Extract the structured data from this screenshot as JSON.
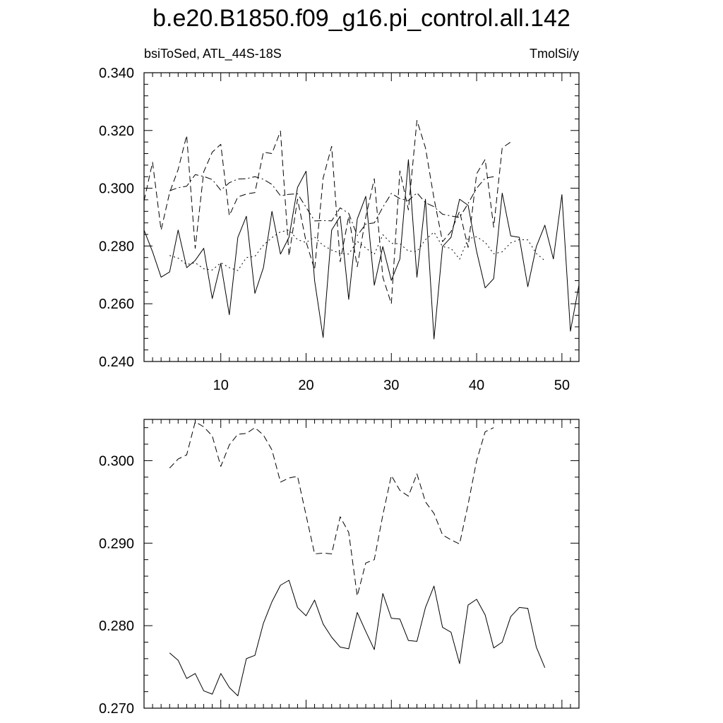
{
  "title": "b.e20.B1850.f09_g16.pi_control.all.142",
  "chart_data": [
    {
      "type": "line",
      "left_label": "bsiToSed, ATL_44S-18S",
      "right_label": "TmolSi/y",
      "xlim": [
        1,
        52
      ],
      "ylim": [
        0.24,
        0.34
      ],
      "xticks": [
        10,
        20,
        30,
        40,
        50
      ],
      "yticks": [
        0.24,
        0.26,
        0.28,
        0.3,
        0.32,
        0.34
      ],
      "ytick_labels": [
        "0.240",
        "0.260",
        "0.280",
        "0.300",
        "0.320",
        "0.340"
      ],
      "grid": false,
      "series": [
        {
          "style": "solid",
          "x": [
            1,
            2,
            3,
            4,
            5,
            6,
            7,
            8,
            9,
            10,
            11,
            12,
            13,
            14,
            15,
            16,
            17,
            18,
            19,
            20,
            21,
            22,
            23,
            24,
            25,
            26,
            27,
            28,
            29,
            30,
            31,
            32,
            33,
            34,
            35,
            36,
            37,
            38,
            39,
            40,
            41,
            42,
            43,
            44,
            45,
            46,
            47,
            48,
            49,
            50,
            51,
            52
          ],
          "values": [
            0.2855,
            0.278,
            0.2692,
            0.271,
            0.2855,
            0.2725,
            0.275,
            0.2792,
            0.2618,
            0.274,
            0.2562,
            0.283,
            0.2903,
            0.2636,
            0.2725,
            0.292,
            0.2772,
            0.283,
            0.3003,
            0.3059,
            0.268,
            0.2483,
            0.2855,
            0.2903,
            0.2615,
            0.2893,
            0.2972,
            0.2664,
            0.2798,
            0.2681,
            0.2755,
            0.3099,
            0.2692,
            0.2962,
            0.2478,
            0.2798,
            0.283,
            0.2962,
            0.2941,
            0.2781,
            0.2655,
            0.2687,
            0.2983,
            0.2835,
            0.283,
            0.2659,
            0.2798,
            0.2872,
            0.2755,
            0.2978,
            0.2505,
            0.2665
          ]
        },
        {
          "style": "dashed",
          "x": [
            1,
            2,
            3,
            4,
            5,
            6,
            7,
            8,
            9,
            10,
            11,
            12,
            13,
            14,
            15,
            16,
            17,
            18,
            19,
            20,
            21,
            22,
            23,
            24,
            25,
            26,
            27,
            28,
            29,
            30,
            31,
            32,
            33,
            34,
            35,
            36,
            37,
            38,
            39,
            40,
            41,
            42,
            43,
            44
          ],
          "values": [
            0.2956,
            0.309,
            0.2855,
            0.2985,
            0.3065,
            0.3183,
            0.2792,
            0.3057,
            0.3125,
            0.3152,
            0.2905,
            0.297,
            0.298,
            0.2985,
            0.3125,
            0.312,
            0.3198,
            0.2766,
            0.2962,
            0.2815,
            0.2718,
            0.3035,
            0.3145,
            0.2745,
            0.2903,
            0.2728,
            0.29,
            0.3033,
            0.2692,
            0.26,
            0.306,
            0.2925,
            0.3235,
            0.314,
            0.2965,
            0.2815,
            0.285,
            0.292,
            0.2795,
            0.305,
            0.31,
            0.2865,
            0.314,
            0.316
          ]
        },
        {
          "style": "dashdot",
          "x": [
            4,
            5,
            6,
            7,
            8,
            9,
            10,
            11,
            12,
            13,
            14,
            15,
            16,
            17,
            18,
            19,
            20,
            21,
            22,
            23,
            24,
            25,
            26,
            27,
            28,
            29,
            30,
            31,
            32,
            33,
            34,
            35,
            36,
            37,
            38,
            39,
            40,
            41,
            42
          ],
          "values": [
            0.2991,
            0.3002,
            0.3007,
            0.3047,
            0.3041,
            0.303,
            0.2993,
            0.3019,
            0.3032,
            0.3033,
            0.304,
            0.3031,
            0.3013,
            0.2974,
            0.2979,
            0.2981,
            0.2934,
            0.2887,
            0.2888,
            0.2887,
            0.2932,
            0.2913,
            0.2836,
            0.2876,
            0.288,
            0.2934,
            0.2982,
            0.2964,
            0.2957,
            0.2984,
            0.295,
            0.2936,
            0.291,
            0.2904,
            0.2899,
            0.2947,
            0.3,
            0.3035,
            0.304
          ]
        },
        {
          "style": "dotted",
          "x": [
            4,
            5,
            6,
            7,
            8,
            9,
            10,
            11,
            12,
            13,
            14,
            15,
            16,
            17,
            18,
            19,
            20,
            21,
            22,
            23,
            24,
            25,
            26,
            27,
            28,
            29,
            30,
            31,
            32,
            33,
            34,
            35,
            36,
            37,
            38,
            39,
            40,
            41,
            42,
            43,
            44,
            45,
            46,
            47,
            48
          ],
          "values": [
            0.2767,
            0.2758,
            0.2736,
            0.2742,
            0.2721,
            0.2717,
            0.2742,
            0.2725,
            0.2715,
            0.276,
            0.2764,
            0.2803,
            0.2829,
            0.2849,
            0.2855,
            0.2822,
            0.2812,
            0.2831,
            0.2802,
            0.2786,
            0.2774,
            0.2772,
            0.2816,
            0.2793,
            0.2771,
            0.2839,
            0.2809,
            0.2808,
            0.2782,
            0.2781,
            0.2822,
            0.2848,
            0.2798,
            0.2792,
            0.2754,
            0.2825,
            0.2832,
            0.2813,
            0.2773,
            0.278,
            0.2811,
            0.2822,
            0.2821,
            0.2774,
            0.2749
          ]
        }
      ]
    },
    {
      "type": "line",
      "xlim": [
        1,
        52
      ],
      "ylim": [
        0.27,
        0.305
      ],
      "xticks": [
        10,
        20,
        30,
        40,
        50
      ],
      "yticks": [
        0.27,
        0.28,
        0.29,
        0.3
      ],
      "ytick_labels": [
        "0.270",
        "0.280",
        "0.290",
        "0.300"
      ],
      "grid": false,
      "series": [
        {
          "style": "dashed",
          "x": [
            4,
            5,
            6,
            7,
            8,
            9,
            10,
            11,
            12,
            13,
            14,
            15,
            16,
            17,
            18,
            19,
            20,
            21,
            22,
            23,
            24,
            25,
            26,
            27,
            28,
            29,
            30,
            31,
            32,
            33,
            34,
            35,
            36,
            37,
            38,
            39,
            40,
            41,
            42
          ],
          "values": [
            0.2991,
            0.3002,
            0.3007,
            0.3047,
            0.3041,
            0.303,
            0.2993,
            0.3019,
            0.3032,
            0.3033,
            0.304,
            0.3031,
            0.3013,
            0.2974,
            0.2979,
            0.2981,
            0.2934,
            0.2887,
            0.2888,
            0.2887,
            0.2932,
            0.2913,
            0.2836,
            0.2876,
            0.288,
            0.2934,
            0.2982,
            0.2964,
            0.2957,
            0.2984,
            0.295,
            0.2936,
            0.291,
            0.2904,
            0.2899,
            0.2947,
            0.3,
            0.3035,
            0.304
          ]
        },
        {
          "style": "solid",
          "x": [
            4,
            5,
            6,
            7,
            8,
            9,
            10,
            11,
            12,
            13,
            14,
            15,
            16,
            17,
            18,
            19,
            20,
            21,
            22,
            23,
            24,
            25,
            26,
            27,
            28,
            29,
            30,
            31,
            32,
            33,
            34,
            35,
            36,
            37,
            38,
            39,
            40,
            41,
            42,
            43,
            44,
            45,
            46,
            47,
            48
          ],
          "values": [
            0.2767,
            0.2758,
            0.2736,
            0.2742,
            0.2721,
            0.2717,
            0.2742,
            0.2725,
            0.2715,
            0.276,
            0.2764,
            0.2803,
            0.2829,
            0.2849,
            0.2855,
            0.2822,
            0.2812,
            0.2831,
            0.2802,
            0.2786,
            0.2774,
            0.2772,
            0.2816,
            0.2793,
            0.2771,
            0.2839,
            0.2809,
            0.2808,
            0.2782,
            0.2781,
            0.2822,
            0.2848,
            0.2798,
            0.2792,
            0.2754,
            0.2825,
            0.2832,
            0.2813,
            0.2773,
            0.278,
            0.2811,
            0.2822,
            0.2821,
            0.2774,
            0.2749
          ]
        }
      ]
    }
  ]
}
